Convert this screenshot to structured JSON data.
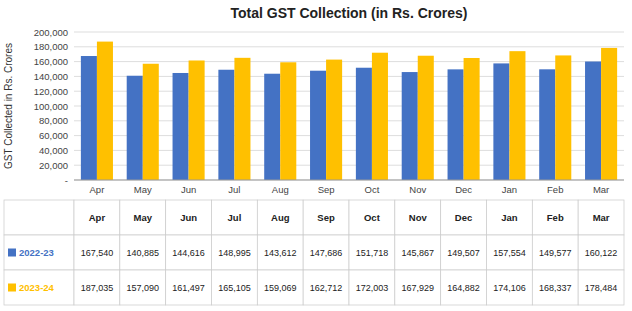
{
  "chart_data": {
    "type": "bar",
    "title": "Total GST Collection (in Rs. Crores)",
    "ylabel": "GST Collected in Rs. Crores",
    "categories": [
      "Apr",
      "May",
      "Jun",
      "Jul",
      "Aug",
      "Sep",
      "Oct",
      "Nov",
      "Dec",
      "Jan",
      "Feb",
      "Mar"
    ],
    "series": [
      {
        "name": "2022-23",
        "color": "#4472C4",
        "values": [
          167540,
          140885,
          144616,
          148995,
          143612,
          147686,
          151718,
          145867,
          149507,
          157554,
          149577,
          160122
        ],
        "value_labels": [
          "167,540",
          "140,885",
          "144,616",
          "148,995",
          "143,612",
          "147,686",
          "151,718",
          "145,867",
          "149,507",
          "157,554",
          "149,577",
          "160,122"
        ]
      },
      {
        "name": "2023-24",
        "color": "#FFC000",
        "values": [
          187035,
          157090,
          161497,
          165105,
          159069,
          162712,
          172003,
          167929,
          164882,
          174106,
          168337,
          178484
        ],
        "value_labels": [
          "187,035",
          "157,090",
          "161,497",
          "165,105",
          "159,069",
          "162,712",
          "172,003",
          "167,929",
          "164,882",
          "174,106",
          "168,337",
          "178,484"
        ]
      }
    ],
    "ylim": [
      0,
      200000
    ],
    "yticks": [
      {
        "value": 0,
        "label": "-"
      },
      {
        "value": 20000,
        "label": "20,000"
      },
      {
        "value": 40000,
        "label": "40,000"
      },
      {
        "value": 60000,
        "label": "60,000"
      },
      {
        "value": 80000,
        "label": "80,000"
      },
      {
        "value": 100000,
        "label": "100,000"
      },
      {
        "value": 120000,
        "label": "120,000"
      },
      {
        "value": 140000,
        "label": "140,000"
      },
      {
        "value": 160000,
        "label": "160,000"
      },
      {
        "value": 180000,
        "label": "180,000"
      },
      {
        "value": 200000,
        "label": "200,000"
      }
    ],
    "grid": true
  }
}
